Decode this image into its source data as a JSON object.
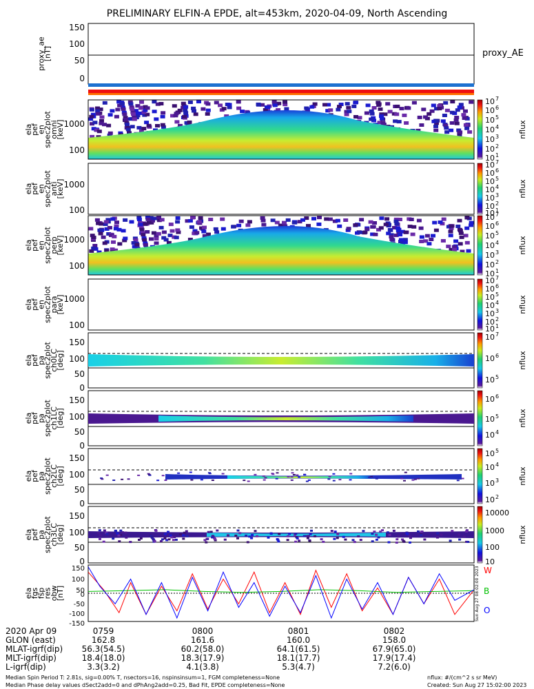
{
  "title": "PRELIMINARY ELFIN-A EPDE, alt=453km, 2020-04-09, North Ascending",
  "chart_data": [
    {
      "type": "line",
      "name": "proxy_ae",
      "ylabel": [
        "proxy_ae",
        "[nT]"
      ],
      "legend": "proxy_AE",
      "yticks": [
        "150",
        "100",
        "50",
        "0"
      ],
      "ylim": [
        -15,
        155
      ],
      "value": 70
    },
    {
      "type": "heatmap",
      "name": "pef-en-spec2plot-omni",
      "ylabel": [
        "ela",
        "pef",
        "en",
        "spec2plot",
        "omni",
        "[keV]"
      ],
      "yticks": [
        "1000",
        "100"
      ],
      "colorbar": {
        "label": "nflux",
        "ticks": [
          "10",
          "10",
          "10",
          "10",
          "10",
          "10",
          "10"
        ],
        "exponents": [
          "7",
          "6",
          "5",
          "4",
          "3",
          "2",
          "1"
        ]
      }
    },
    {
      "type": "heatmap",
      "name": "pef-en-spec2plot-anti",
      "ylabel": [
        "ela",
        "pef",
        "en",
        "spec2plot",
        "anti",
        "[keV]"
      ],
      "yticks": [
        "1000",
        "100"
      ],
      "colorbar": {
        "label": "nflux",
        "ticks": [
          "10",
          "10",
          "10",
          "10",
          "10",
          "10",
          "10"
        ],
        "exponents": [
          "7",
          "6",
          "5",
          "4",
          "3",
          "2",
          "1"
        ]
      }
    },
    {
      "type": "heatmap",
      "name": "pef-en-spec2plot-perp",
      "ylabel": [
        "ela",
        "pef",
        "en",
        "spec2plot",
        "perp",
        "[keV]"
      ],
      "yticks": [
        "1000",
        "100"
      ],
      "colorbar": {
        "label": "nflux",
        "ticks": [
          "10",
          "10",
          "10",
          "10",
          "10",
          "10",
          "10"
        ],
        "exponents": [
          "7",
          "6",
          "5",
          "4",
          "3",
          "2",
          "1"
        ]
      }
    },
    {
      "type": "heatmap",
      "name": "pef-en-spec2plot-para",
      "ylabel": [
        "ela",
        "pef",
        "en",
        "spec2plot",
        "para",
        "[keV]"
      ],
      "yticks": [
        "1000",
        "100"
      ],
      "colorbar": {
        "label": "nflux",
        "ticks": [
          "10",
          "10",
          "10",
          "10",
          "10",
          "10",
          "10"
        ],
        "exponents": [
          "7",
          "6",
          "5",
          "4",
          "3",
          "2",
          "1"
        ]
      }
    },
    {
      "type": "heatmap",
      "name": "pef-pa-spec2plot-ch0LC",
      "ylabel": [
        "ela",
        "pef",
        "pa",
        "spec2plot",
        "ch0LC",
        "[deg]"
      ],
      "yticks": [
        "150",
        "100",
        "50",
        "0"
      ],
      "colorbar": {
        "label": "nflux",
        "ticks": [
          "10",
          "10",
          "10"
        ],
        "exponents": [
          "7",
          "6",
          "5"
        ]
      }
    },
    {
      "type": "heatmap",
      "name": "pef-pa-spec2plot-ch1LC",
      "ylabel": [
        "ela",
        "pef",
        "pa",
        "spec2plot",
        "ch1LC",
        "[deg]"
      ],
      "yticks": [
        "150",
        "100",
        "50",
        "0"
      ],
      "colorbar": {
        "label": "nflux",
        "ticks": [
          "10",
          "10",
          "10"
        ],
        "exponents": [
          "6",
          "5",
          "4"
        ]
      }
    },
    {
      "type": "heatmap",
      "name": "pef-pa-spec2plot-ch2LC",
      "ylabel": [
        "ela",
        "pef",
        "pa",
        "spec2plot",
        "ch2LC",
        "[deg]"
      ],
      "yticks": [
        "150",
        "100",
        "50",
        "0"
      ],
      "colorbar": {
        "label": "nflux",
        "ticks": [
          "10",
          "10",
          "10",
          "10"
        ],
        "exponents": [
          "5",
          "4",
          "3",
          "2"
        ]
      }
    },
    {
      "type": "heatmap",
      "name": "pef-pa-spec2plot-ch3LC",
      "ylabel": [
        "ela",
        "pef",
        "pa",
        "spec2plot",
        "ch3LC",
        "[deg]"
      ],
      "yticks": [
        "150",
        "100",
        "50",
        "0"
      ],
      "colorbar": {
        "label": "nflux",
        "ticks": [
          "10000",
          "1000",
          "100",
          "10"
        ]
      }
    },
    {
      "type": "line",
      "name": "fgs-fsp-res-obw",
      "ylabel": [
        "ela",
        "fgs",
        "fsp",
        "res",
        "obw",
        "[nT]"
      ],
      "yticks": [
        "150",
        "100",
        "50",
        "0",
        "-50",
        "-100",
        "-150"
      ],
      "ylim": [
        -160,
        160
      ],
      "legend": [
        {
          "label": "W",
          "color": "#ff0000"
        },
        {
          "label": "B",
          "color": "#00c000"
        },
        {
          "label": "O",
          "color": "#0000ff"
        }
      ],
      "series": [
        {
          "name": "W",
          "color": "#ff0000",
          "x": [
            0,
            0.04,
            0.08,
            0.11,
            0.15,
            0.19,
            0.23,
            0.27,
            0.31,
            0.35,
            0.39,
            0.43,
            0.47,
            0.51,
            0.55,
            0.59,
            0.63,
            0.67,
            0.71,
            0.75,
            0.79,
            0.83,
            0.87,
            0.91,
            0.95,
            1.0
          ],
          "values": [
            120,
            20,
            -110,
            60,
            -120,
            40,
            -100,
            110,
            -90,
            80,
            -60,
            120,
            -110,
            60,
            -120,
            130,
            -80,
            110,
            -100,
            30,
            -120,
            90,
            -60,
            80,
            -120,
            20
          ]
        },
        {
          "name": "B",
          "color": "#00c000",
          "x": [
            0,
            0.1,
            0.2,
            0.3,
            0.4,
            0.5,
            0.6,
            0.7,
            0.8,
            0.9,
            1.0
          ],
          "values": [
            10,
            15,
            20,
            10,
            5,
            10,
            20,
            15,
            5,
            10,
            15
          ]
        },
        {
          "name": "O",
          "color": "#0000ff",
          "x": [
            0,
            0.03,
            0.07,
            0.11,
            0.15,
            0.19,
            0.23,
            0.27,
            0.31,
            0.35,
            0.39,
            0.43,
            0.47,
            0.51,
            0.55,
            0.59,
            0.63,
            0.67,
            0.71,
            0.75,
            0.79,
            0.83,
            0.87,
            0.91,
            0.95,
            1.0
          ],
          "values": [
            150,
            40,
            -60,
            80,
            -120,
            60,
            -140,
            90,
            -100,
            120,
            -80,
            60,
            -130,
            40,
            -110,
            100,
            -140,
            80,
            -90,
            60,
            -120,
            90,
            -60,
            110,
            -40,
            20
          ]
        }
      ]
    }
  ],
  "footer": {
    "rows": [
      {
        "label": "2020 Apr 09",
        "values": [
          "0759",
          "0800",
          "0801",
          "0802"
        ]
      },
      {
        "label": "GLON (east)",
        "values": [
          "162.8",
          "161.6",
          "160.0",
          "158.0"
        ]
      },
      {
        "label": "MLAT-igrf(dip)",
        "values": [
          "56.3(54.5)",
          "60.2(58.0)",
          "64.1(61.5)",
          "67.9(65.0)"
        ]
      },
      {
        "label": "MLT-igrf(dip)",
        "values": [
          "18.4(18.0)",
          "18.3(17.9)",
          "18.1(17.7)",
          "17.9(17.4)"
        ]
      },
      {
        "label": "L-igrf(dip)",
        "values": [
          "3.3(3.2)",
          "4.1(3.8)",
          "5.3(4.7)",
          "7.2(6.0)"
        ]
      }
    ],
    "note_left_1": "Median Spin Period T: 2.81s, sig=0.00% T, nsectors=16, nspinsinsum=1, FGM completeness=None",
    "note_left_2": "Median Phase delay values dSect2add=0 and dPhAng2add=0.25, Bad Fit, EPDE completeness=None",
    "note_right_1": "nflux: #/(cm^2 s sr MeV)",
    "note_right_2": "Created: Sun Aug 27 15:02:00 2023",
    "vertical_stamp": "Sun Aug 27 08:02:00 2023"
  }
}
